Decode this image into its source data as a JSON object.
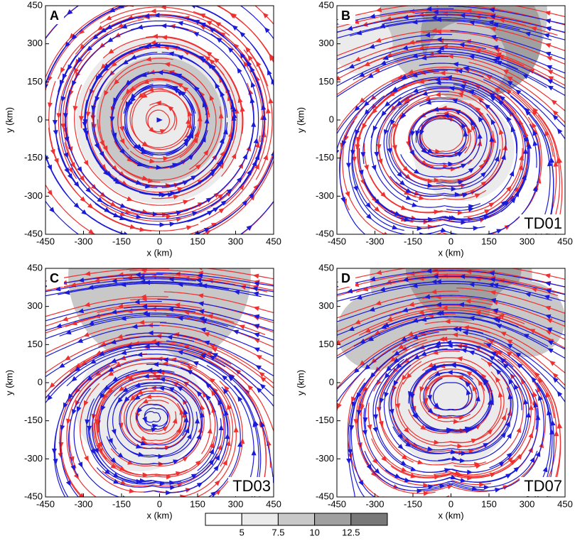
{
  "chart_data": [
    {
      "type": "streamline",
      "panel_label": "A",
      "xlabel": "x (km)",
      "ylabel": "y (km)",
      "xlim": [
        -450,
        450
      ],
      "ylim": [
        -450,
        450
      ],
      "xticks": [
        -450,
        -300,
        -150,
        0,
        150,
        300,
        450
      ],
      "yticks": [
        -450,
        -300,
        -150,
        0,
        150,
        300,
        450
      ]
    },
    {
      "type": "streamline",
      "panel_label": "B",
      "case_label": "TD01",
      "xlabel": "x (km)",
      "ylabel": "y (km)",
      "xlim": [
        -450,
        450
      ],
      "ylim": [
        -450,
        450
      ],
      "xticks": [
        -450,
        -300,
        -150,
        0,
        150,
        300,
        450
      ],
      "yticks": [
        -450,
        -300,
        -150,
        0,
        150,
        300,
        450
      ]
    },
    {
      "type": "streamline",
      "panel_label": "C",
      "case_label": "TD03",
      "xlabel": "x (km)",
      "ylabel": "y (km)",
      "xlim": [
        -450,
        450
      ],
      "ylim": [
        -450,
        450
      ],
      "xticks": [
        -450,
        -300,
        -150,
        0,
        150,
        300,
        450
      ],
      "yticks": [
        -450,
        -300,
        -150,
        0,
        150,
        300,
        450
      ]
    },
    {
      "type": "streamline",
      "panel_label": "D",
      "case_label": "TD07",
      "xlabel": "x (km)",
      "ylabel": "y (km)",
      "xlim": [
        -450,
        450
      ],
      "ylim": [
        -450,
        450
      ],
      "xticks": [
        -450,
        -300,
        -150,
        0,
        150,
        300,
        450
      ],
      "yticks": [
        -450,
        -300,
        -150,
        0,
        150,
        300,
        450
      ]
    }
  ],
  "colorbar": {
    "ticks": [
      5,
      7.5,
      10,
      12.5
    ],
    "colors": [
      "#ffffff",
      "#ebebeb",
      "#c8c8c8",
      "#a0a0a0",
      "#787878"
    ]
  }
}
